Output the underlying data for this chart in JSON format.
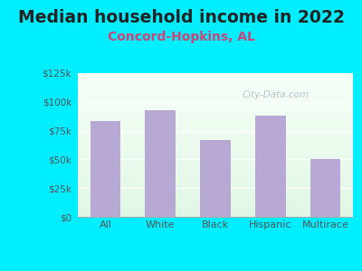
{
  "title": "Median household income in 2022",
  "subtitle": "Concord-Hopkins, AL",
  "categories": [
    "All",
    "White",
    "Black",
    "Hispanic",
    "Multirace"
  ],
  "values": [
    83000,
    93000,
    67000,
    88000,
    50000
  ],
  "bar_color": "#b8a9d4",
  "title_fontsize": 13.5,
  "subtitle_fontsize": 10,
  "subtitle_color": "#cc4477",
  "title_color": "#222222",
  "tick_color": "#555555",
  "background_outer": "#00eeff",
  "ylim": [
    0,
    125000
  ],
  "yticks": [
    0,
    25000,
    50000,
    75000,
    100000,
    125000
  ],
  "ytick_labels": [
    "$0",
    "$25k",
    "$50k",
    "$75k",
    "$100k",
    "$125k"
  ],
  "watermark": "City-Data.com",
  "grid_color": "#ccddcc"
}
